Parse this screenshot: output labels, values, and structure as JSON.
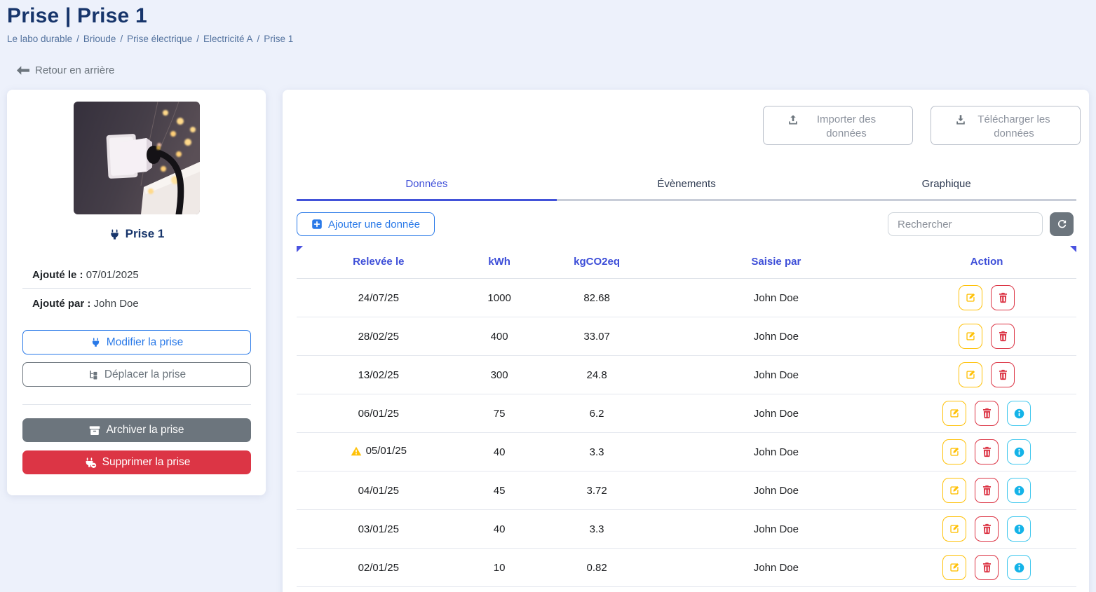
{
  "page": {
    "title": "Prise | Prise 1",
    "breadcrumb": [
      "Le labo durable",
      "Brioude",
      "Prise électrique",
      "Electricité A",
      "Prise 1"
    ],
    "back_label": "Retour en arrière"
  },
  "device_card": {
    "name": "Prise 1",
    "added_on_label": "Ajouté le :",
    "added_on_value": "07/01/2025",
    "added_by_label": "Ajouté par :",
    "added_by_value": "John Doe",
    "buttons": {
      "modify": "Modifier la prise",
      "move": "Déplacer la prise",
      "archive": "Archiver la prise",
      "delete": "Supprimer la prise"
    }
  },
  "toolbar": {
    "import_label": "Importer des données",
    "download_label": "Télécharger les données",
    "add_label": "Ajouter une donnée",
    "search_placeholder": "Rechercher",
    "refresh_icon": "refresh-icon"
  },
  "tabs": [
    {
      "label": "Données",
      "active": true
    },
    {
      "label": "Évènements",
      "active": false
    },
    {
      "label": "Graphique",
      "active": false
    }
  ],
  "table": {
    "columns": [
      "Relevée le",
      "kWh",
      "kgCO2eq",
      "Saisie par",
      "Action"
    ],
    "rows": [
      {
        "date": "24/07/25",
        "kwh": "1000",
        "kgco2eq": "82.68",
        "saisie_par": "John Doe",
        "warning": false,
        "info": false
      },
      {
        "date": "28/02/25",
        "kwh": "400",
        "kgco2eq": "33.07",
        "saisie_par": "John Doe",
        "warning": false,
        "info": false
      },
      {
        "date": "13/02/25",
        "kwh": "300",
        "kgco2eq": "24.8",
        "saisie_par": "John Doe",
        "warning": false,
        "info": false
      },
      {
        "date": "06/01/25",
        "kwh": "75",
        "kgco2eq": "6.2",
        "saisie_par": "John Doe",
        "warning": false,
        "info": true
      },
      {
        "date": "05/01/25",
        "kwh": "40",
        "kgco2eq": "3.3",
        "saisie_par": "John Doe",
        "warning": true,
        "info": true
      },
      {
        "date": "04/01/25",
        "kwh": "45",
        "kgco2eq": "3.72",
        "saisie_par": "John Doe",
        "warning": false,
        "info": true
      },
      {
        "date": "03/01/25",
        "kwh": "40",
        "kgco2eq": "3.3",
        "saisie_par": "John Doe",
        "warning": false,
        "info": true
      },
      {
        "date": "02/01/25",
        "kwh": "10",
        "kgco2eq": "0.82",
        "saisie_par": "John Doe",
        "warning": false,
        "info": true
      }
    ]
  },
  "colors": {
    "title_navy": "#17356b",
    "breadcrumb_blue": "#54739f",
    "accent_blue": "#2979e8",
    "active_tab_blue": "#4252d9",
    "header_blue": "#3d4ed8",
    "warning_amber": "#ffc107",
    "danger_red": "#dc3545",
    "info_cyan": "#41c8ee",
    "neutral_gray": "#6c757d",
    "page_background": "#edf1fb"
  }
}
